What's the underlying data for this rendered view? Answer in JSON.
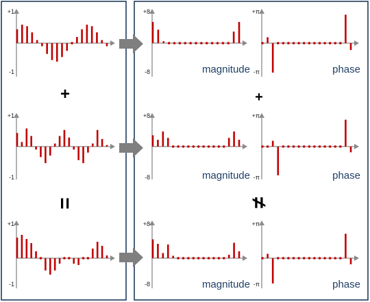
{
  "colors": {
    "stem": "#c00000",
    "panel_border": "#1f3b5c",
    "axis": "#8a8a8a",
    "arrow": "#7f7f7f",
    "label_text": "#1f3f66"
  },
  "operators": {
    "left_plus": "+",
    "left_equals": "=",
    "right_plus": "+",
    "right_not_equal": "≠"
  },
  "chart_data": [
    {
      "type": "stem",
      "panel": "time-domain",
      "row": 1,
      "y_tick_top": "+1",
      "y_tick_bottom": "-1",
      "ylim": [
        -1,
        1
      ],
      "values": [
        0.45,
        0.6,
        0.55,
        0.35,
        0.1,
        -0.1,
        -0.35,
        -0.55,
        -0.6,
        -0.45,
        -0.25,
        0.0,
        0.2,
        0.45,
        0.6,
        0.55,
        0.35,
        0.1,
        -0.1
      ]
    },
    {
      "type": "stem",
      "panel": "time-domain",
      "row": 2,
      "y_tick_top": "+1",
      "y_tick_bottom": "-1",
      "ylim": [
        -1,
        1
      ],
      "values": [
        0.45,
        0.15,
        0.6,
        0.35,
        -0.1,
        -0.35,
        -0.55,
        -0.3,
        0.1,
        0.35,
        0.55,
        0.3,
        -0.1,
        -0.45,
        -0.55,
        -0.2,
        0.1,
        0.55,
        0.25,
        0.05
      ]
    },
    {
      "type": "stem",
      "panel": "time-domain",
      "row": 3,
      "y_tick_top": "+1",
      "y_tick_bottom": "-1",
      "ylim": [
        -1,
        1
      ],
      "values": [
        0.75,
        0.85,
        0.7,
        0.55,
        0.25,
        0.0,
        -0.45,
        -0.6,
        -0.45,
        -0.2,
        0.0,
        0.0,
        -0.2,
        -0.25,
        0.0,
        0.0,
        0.35,
        0.6,
        0.45,
        0.1
      ]
    },
    {
      "type": "stem",
      "panel": "frequency-domain",
      "row": 1,
      "label": "magnitude",
      "y_tick_top": "+8",
      "y_tick_bottom": "-8",
      "ylim": [
        -8,
        8
      ],
      "values": [
        5.5,
        3.5,
        0.5,
        0.2,
        0.2,
        0.2,
        0.2,
        0.2,
        0.2,
        0.2,
        0.2,
        0.2,
        0.2,
        0.2,
        0.2,
        3.0,
        5.5
      ]
    },
    {
      "type": "stem",
      "panel": "frequency-domain",
      "row": 1,
      "label": "phase",
      "y_tick_top": "+π",
      "y_tick_bottom": "-π",
      "ylim": [
        -3.14,
        3.14
      ],
      "values": [
        0.0,
        0.6,
        -3.0,
        0.0,
        0.0,
        0.0,
        0.0,
        0.0,
        0.0,
        0.0,
        0.0,
        0.0,
        0.0,
        0.0,
        0.0,
        0.0,
        2.9,
        -0.7
      ]
    },
    {
      "type": "stem",
      "panel": "frequency-domain",
      "row": 2,
      "label": "magnitude",
      "y_tick_top": "+8",
      "y_tick_bottom": "-8",
      "ylim": [
        -8,
        8
      ],
      "values": [
        3.0,
        1.8,
        4.0,
        2.3,
        0.2,
        0.2,
        0.2,
        0.2,
        0.2,
        0.2,
        0.2,
        0.2,
        0.2,
        0.2,
        0.2,
        2.3,
        4.0,
        1.8
      ]
    },
    {
      "type": "stem",
      "panel": "frequency-domain",
      "row": 2,
      "label": "phase",
      "y_tick_top": "+π",
      "y_tick_bottom": "-π",
      "ylim": [
        -3.14,
        3.14
      ],
      "values": [
        0.0,
        0.0,
        0.6,
        -3.0,
        0.0,
        0.0,
        0.0,
        0.0,
        0.0,
        0.0,
        0.0,
        0.0,
        0.0,
        0.0,
        0.0,
        0.0,
        2.8,
        -0.6
      ]
    },
    {
      "type": "stem",
      "panel": "frequency-domain",
      "row": 3,
      "label": "magnitude",
      "y_tick_top": "+8",
      "y_tick_bottom": "-8",
      "ylim": [
        -8,
        8
      ],
      "values": [
        5.5,
        4.2,
        1.5,
        4.0,
        0.7,
        0.2,
        0.2,
        0.2,
        0.2,
        0.2,
        0.2,
        0.2,
        0.2,
        0.2,
        0.2,
        1.0,
        4.5,
        2.0
      ]
    },
    {
      "type": "stem",
      "panel": "frequency-domain",
      "row": 3,
      "label": "phase",
      "y_tick_top": "+π",
      "y_tick_bottom": "-π",
      "ylim": [
        -3.14,
        3.14
      ],
      "values": [
        0.0,
        0.5,
        -2.9,
        0.0,
        0.0,
        0.0,
        0.0,
        0.0,
        0.0,
        0.0,
        0.0,
        0.0,
        0.0,
        0.0,
        0.0,
        0.0,
        2.8,
        -0.7
      ]
    }
  ]
}
